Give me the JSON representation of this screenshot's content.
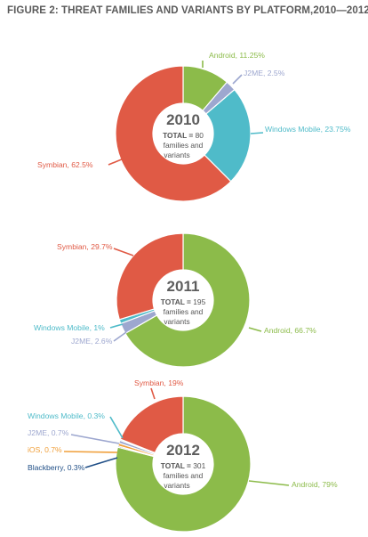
{
  "figure_title": "FIGURE 2: THREAT FAMILIES AND VARIANTS BY PLATFORM,2010—2012",
  "colors": {
    "Android": "#8cbb4a",
    "J2ME": "#9da7cf",
    "Windows Mobile": "#4fbbc9",
    "Symbian": "#e05a45",
    "iOS": "#f0a03c",
    "Blackberry": "#1f4e86",
    "center_text": "#5d5d5d",
    "leader": "#999999"
  },
  "chart_data": [
    {
      "type": "pie",
      "year": "2010",
      "total_prefix": "TOTAL = ",
      "total": "80",
      "total_suffix_line1": "families and",
      "total_suffix_line2": "variants",
      "slices": [
        {
          "name": "Android",
          "value": 11.25,
          "label": "Android, 11.25%"
        },
        {
          "name": "J2ME",
          "value": 2.5,
          "label": "J2ME, 2.5%"
        },
        {
          "name": "Windows Mobile",
          "value": 23.75,
          "label": "Windows Mobile, 23.75%"
        },
        {
          "name": "Symbian",
          "value": 62.5,
          "label": "Symbian, 62.5%"
        }
      ]
    },
    {
      "type": "pie",
      "year": "2011",
      "total_prefix": "TOTAL = ",
      "total": "195",
      "total_suffix_line1": "families and",
      "total_suffix_line2": "variants",
      "slices": [
        {
          "name": "Android",
          "value": 66.7,
          "label": "Android, 66.7%"
        },
        {
          "name": "J2ME",
          "value": 2.6,
          "label": "J2ME, 2.6%"
        },
        {
          "name": "Windows Mobile",
          "value": 1,
          "label": "Windows Mobile, 1%"
        },
        {
          "name": "Symbian",
          "value": 29.7,
          "label": "Symbian, 29.7%"
        }
      ]
    },
    {
      "type": "pie",
      "year": "2012",
      "total_prefix": "TOTAL = ",
      "total": "301",
      "total_suffix_line1": "families and",
      "total_suffix_line2": "variants",
      "slices": [
        {
          "name": "Android",
          "value": 79,
          "label": "Android, 79%"
        },
        {
          "name": "Blackberry",
          "value": 0.3,
          "label": "Blackberry, 0.3%"
        },
        {
          "name": "iOS",
          "value": 0.7,
          "label": "iOS, 0.7%"
        },
        {
          "name": "J2ME",
          "value": 0.7,
          "label": "J2ME, 0.7%"
        },
        {
          "name": "Windows Mobile",
          "value": 0.3,
          "label": "Windows Mobile, 0.3%"
        },
        {
          "name": "Symbian",
          "value": 19,
          "label": "Symbian, 19%"
        }
      ]
    }
  ]
}
